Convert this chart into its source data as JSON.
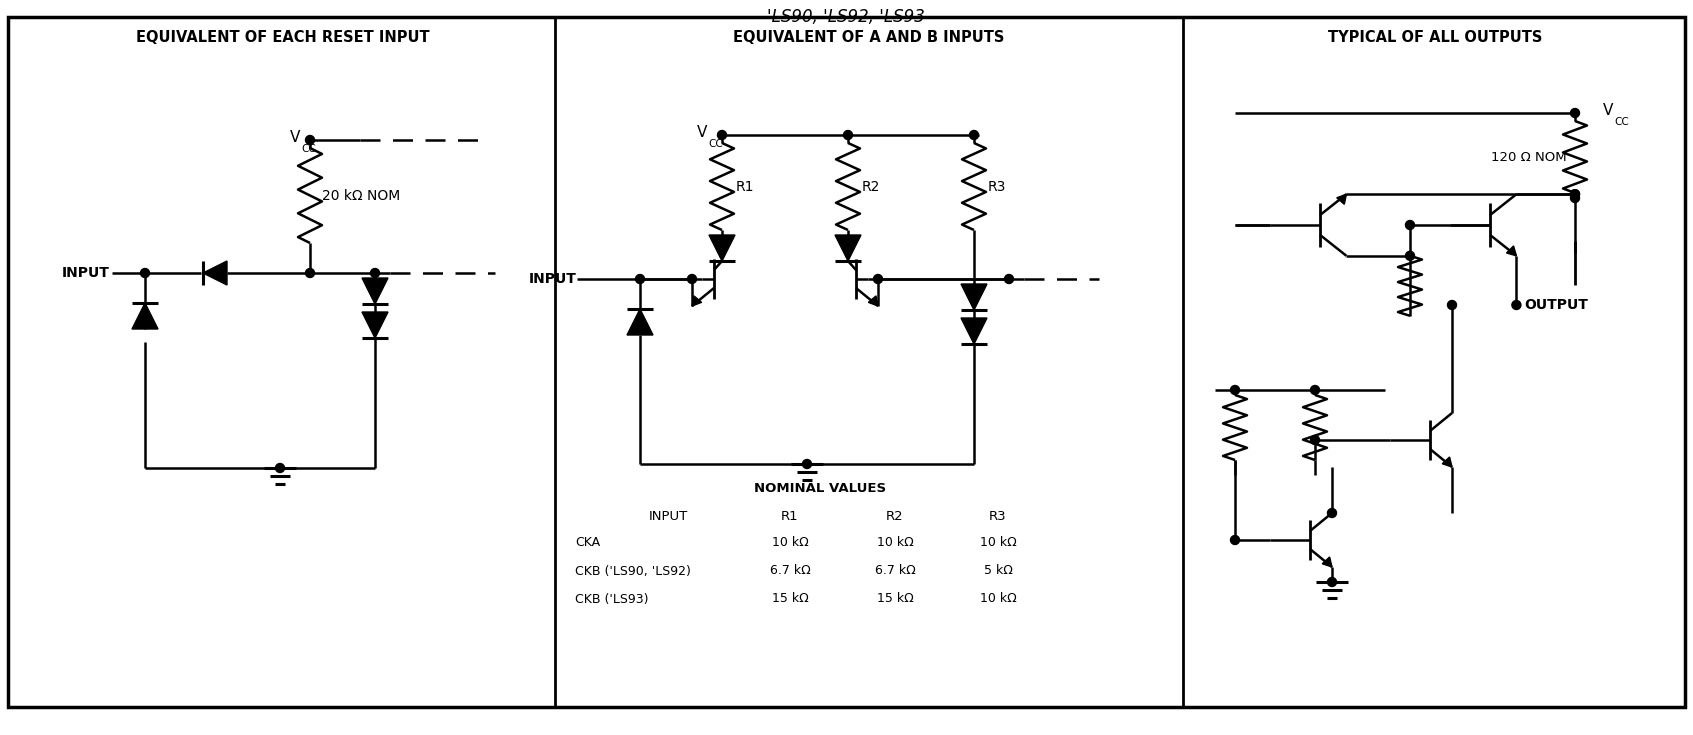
{
  "title": "'LS90, 'LS92, 'LS93",
  "panel1_title": "EQUIVALENT OF EACH RESET INPUT",
  "panel2_title": "EQUIVALENT OF A AND B INPUTS",
  "panel3_title": "TYPICAL OF ALL OUTPUTS",
  "panel1_res": "20 kΩ NOM",
  "panel1_input": "INPUT",
  "panel2_input": "INPUT",
  "panel3_res": "120 Ω NOM",
  "panel3_output": "OUTPUT",
  "tbl_nominal": "NOMINAL VALUES",
  "tbl_input": "INPUT",
  "tbl_r1": "R1",
  "tbl_r2": "R2",
  "tbl_r3": "R3",
  "tbl_row1_lbl": "CKA",
  "tbl_row1_r1": "10 kΩ",
  "tbl_row1_r2": "10 kΩ",
  "tbl_row1_r3": "10 kΩ",
  "tbl_row2_lbl": "CKB ('LS90, 'LS92)",
  "tbl_row2_r1": "6.7 kΩ",
  "tbl_row2_r2": "6.7 kΩ",
  "tbl_row2_r3": "5 kΩ",
  "tbl_row3_lbl": "CKB ('LS93)",
  "tbl_row3_r1": "15 kΩ",
  "tbl_row3_r2": "15 kΩ",
  "tbl_row3_r3": "10 kΩ"
}
